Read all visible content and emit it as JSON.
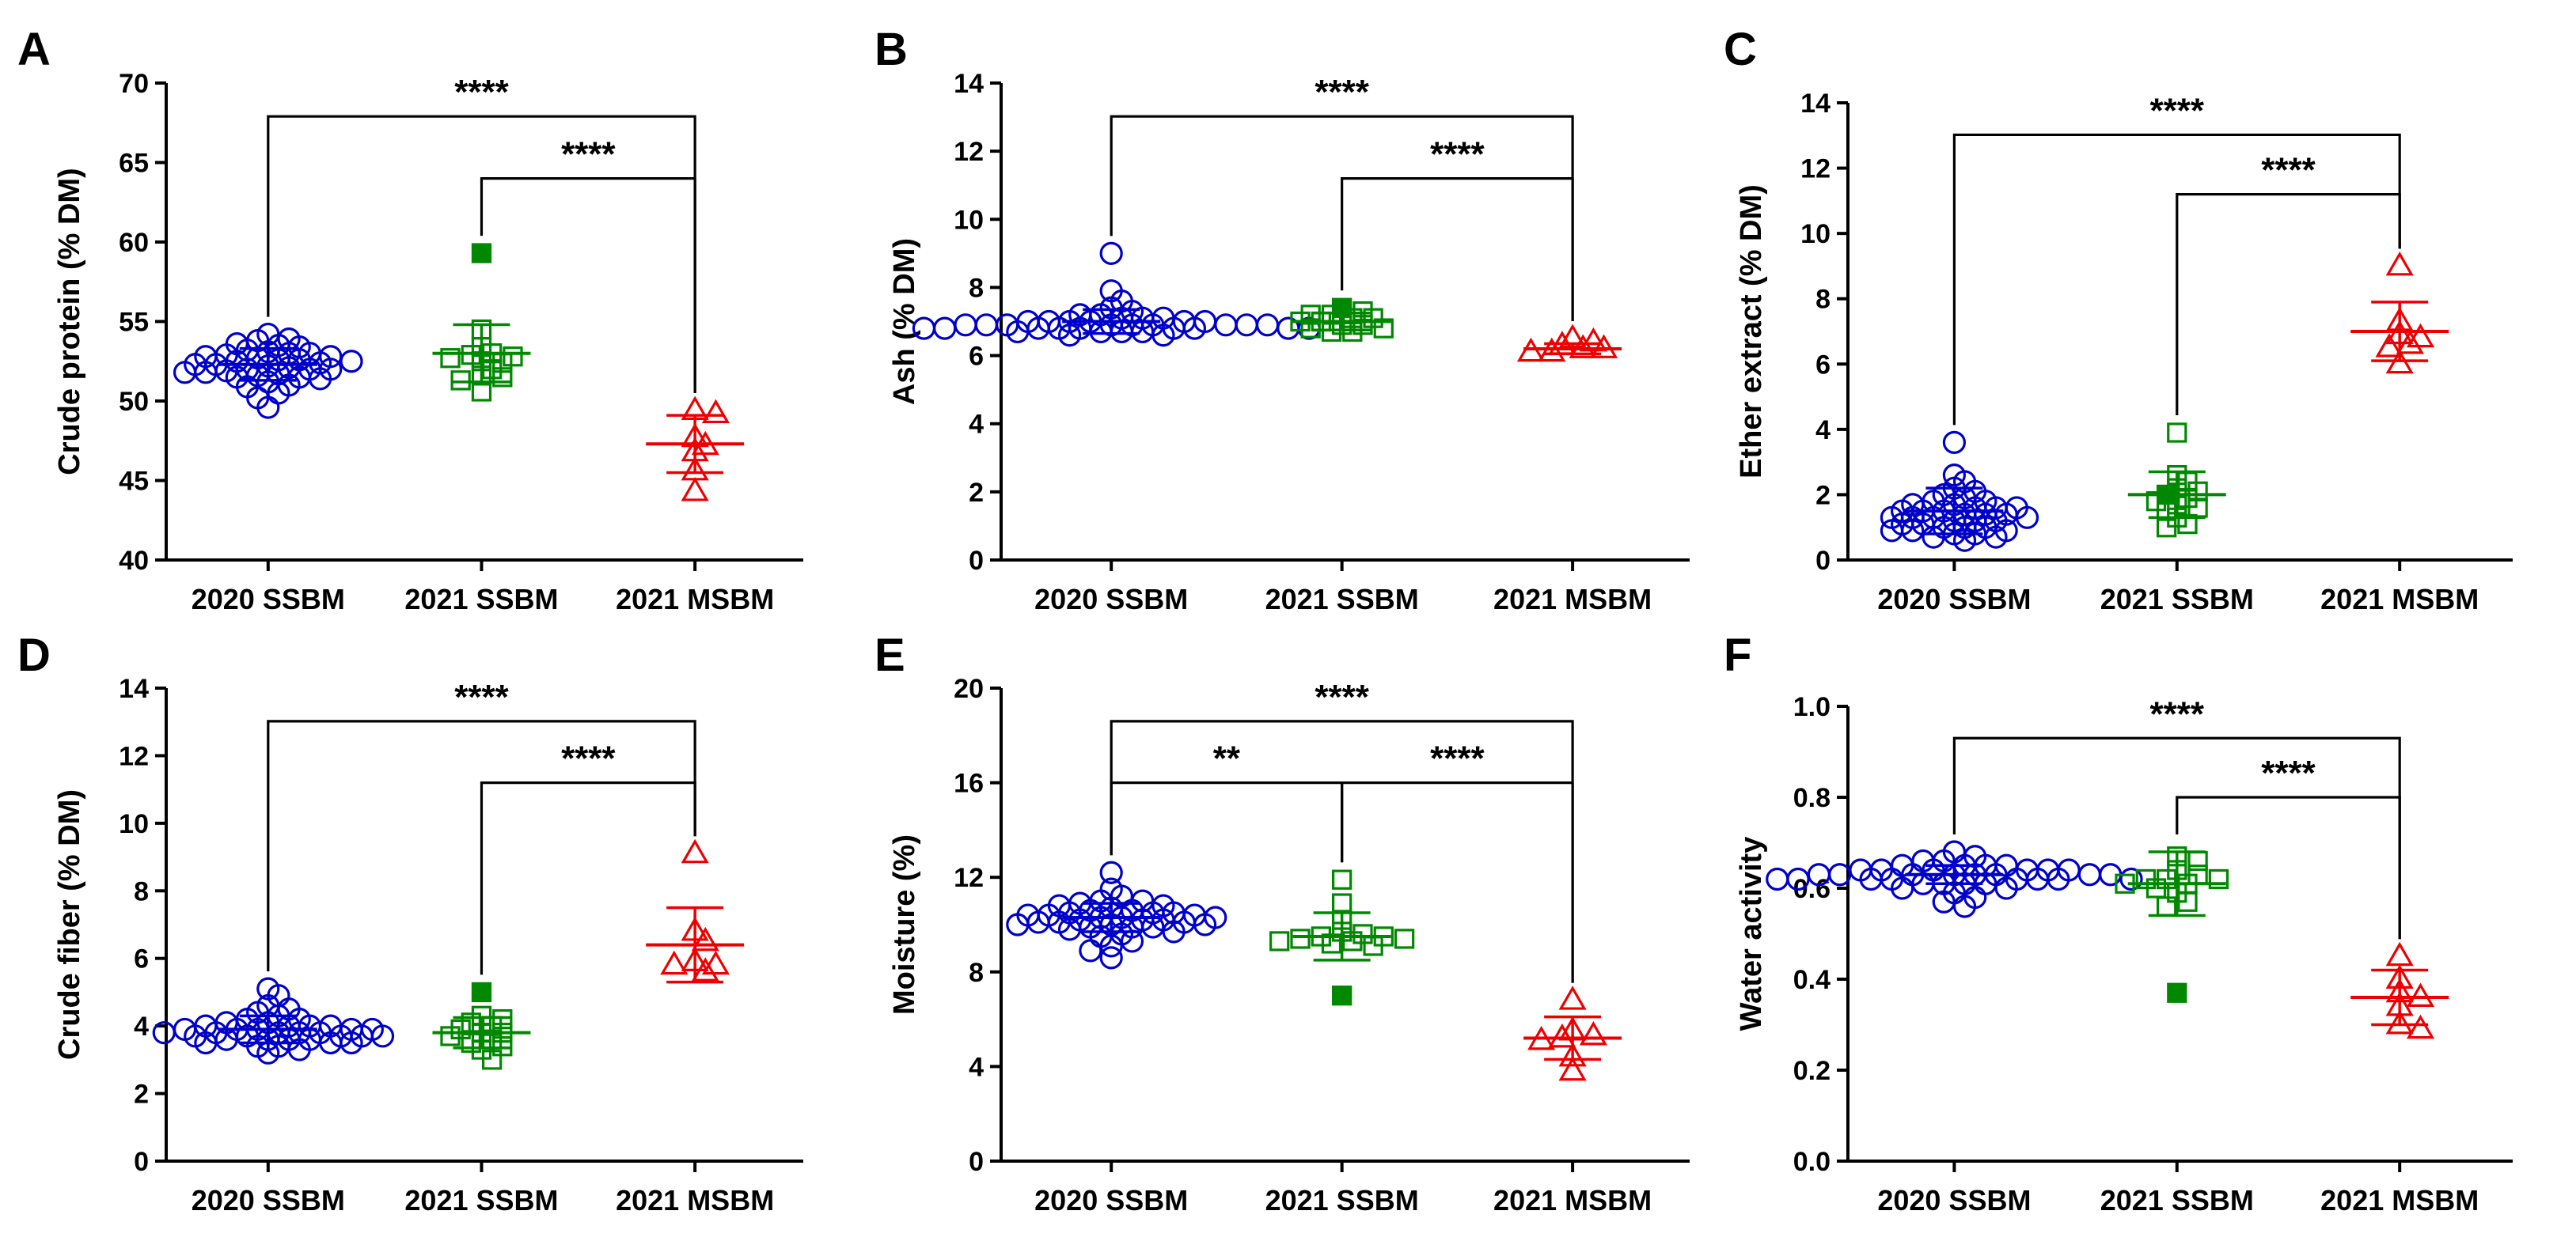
{
  "chart_data": [
    {
      "type": "scatter",
      "panel": "A",
      "ylabel": "Crude protein (% DM)",
      "ylim": [
        40,
        70
      ],
      "yticks": [
        "40",
        "45",
        "50",
        "55",
        "60",
        "65",
        "70"
      ],
      "categories": [
        "2020 SSBM",
        "2021 SSBM",
        "2021 MSBM"
      ],
      "series": [
        {
          "marker": "circle",
          "color": "#0000cc",
          "mean": 52.3,
          "sd": 1.0,
          "values": [
            52.0,
            52.5,
            53.0,
            51.5,
            53.5,
            52.2,
            51.8,
            52.8,
            50.5,
            49.6,
            54.2,
            53.8,
            51.0,
            52.4,
            52.9,
            51.7,
            53.2,
            52.0,
            52.6,
            51.4,
            53.6,
            52.1,
            51.9,
            52.7,
            50.9,
            53.1,
            52.3,
            51.6,
            52.5,
            53.0,
            51.2,
            52.8,
            53.4,
            52.0,
            51.8,
            52.6,
            50.2,
            52.3,
            53.9,
            51.5
          ]
        },
        {
          "marker": "square",
          "color": "#008800",
          "mean": 53.0,
          "sd": 1.8,
          "values": [
            59.3,
            54.5,
            53.4,
            53.0,
            52.9,
            52.8,
            52.7,
            52.5,
            52.4,
            52.0,
            51.6,
            51.5,
            51.3,
            50.6
          ],
          "filled_index": 0
        },
        {
          "marker": "triangle",
          "color": "#ee0000",
          "mean": 47.3,
          "sd": 1.8,
          "values": [
            49.4,
            49.2,
            47.7,
            47.2,
            46.8,
            45.6,
            44.3
          ]
        }
      ],
      "comparisons": [
        {
          "from": "2020 SSBM",
          "to": "2021 MSBM",
          "label": "****"
        },
        {
          "from": "2021 SSBM",
          "to": "2021 MSBM",
          "label": "****"
        }
      ]
    },
    {
      "type": "scatter",
      "panel": "B",
      "ylabel": "Ash (% DM)",
      "ylim": [
        0,
        14
      ],
      "yticks": [
        "0",
        "2",
        "4",
        "6",
        "8",
        "10",
        "12",
        "14"
      ],
      "categories": [
        "2020 SSBM",
        "2021 SSBM",
        "2021 MSBM"
      ],
      "series": [
        {
          "marker": "circle",
          "color": "#0000cc",
          "mean": 7.0,
          "sd": 0.35,
          "values": [
            9.0,
            7.9,
            7.6,
            7.4,
            7.3,
            7.2,
            7.1,
            7.1,
            7.0,
            7.0,
            7.0,
            6.9,
            6.9,
            6.9,
            6.9,
            6.8,
            6.8,
            6.8,
            6.8,
            6.8,
            6.7,
            6.7,
            6.7,
            6.9,
            7.0,
            7.1,
            6.8,
            6.9,
            7.0,
            6.6,
            6.8,
            6.9,
            7.0,
            6.8,
            6.9,
            6.7,
            7.2,
            6.9,
            6.8,
            6.6
          ]
        },
        {
          "marker": "square",
          "color": "#008800",
          "mean": 7.0,
          "sd": 0.25,
          "values": [
            7.4,
            7.3,
            7.2,
            7.2,
            7.1,
            7.1,
            7.0,
            7.0,
            6.9,
            6.9,
            6.8,
            6.8,
            6.7,
            6.7
          ],
          "filled_index": 0
        },
        {
          "marker": "triangle",
          "color": "#ee0000",
          "mean": 6.2,
          "sd": 0.15,
          "values": [
            6.5,
            6.4,
            6.3,
            6.2,
            6.2,
            6.1,
            6.1
          ]
        }
      ],
      "comparisons": [
        {
          "from": "2020 SSBM",
          "to": "2021 MSBM",
          "label": "****"
        },
        {
          "from": "2021 SSBM",
          "to": "2021 MSBM",
          "label": "****"
        }
      ]
    },
    {
      "type": "scatter",
      "panel": "C",
      "ylabel": "Ether extract (% DM)",
      "ylim": [
        0,
        14
      ],
      "yticks": [
        "0",
        "2",
        "4",
        "6",
        "8",
        "10",
        "12",
        "14"
      ],
      "categories": [
        "2020 SSBM",
        "2021 SSBM",
        "2021 MSBM"
      ],
      "series": [
        {
          "marker": "circle",
          "color": "#0000cc",
          "mean": 1.5,
          "sd": 0.7,
          "values": [
            3.6,
            2.6,
            2.4,
            2.2,
            2.0,
            1.9,
            1.8,
            1.7,
            1.6,
            1.6,
            1.5,
            1.5,
            1.4,
            1.4,
            1.3,
            1.3,
            1.3,
            1.2,
            1.2,
            1.1,
            1.1,
            1.0,
            1.0,
            0.9,
            0.9,
            0.8,
            0.8,
            0.7,
            0.7,
            0.6,
            1.6,
            1.4,
            1.2,
            1.0,
            1.8,
            1.5,
            1.3,
            2.1,
            0.9,
            1.7
          ]
        },
        {
          "marker": "square",
          "color": "#008800",
          "mean": 2.0,
          "sd": 0.7,
          "values": [
            3.9,
            2.6,
            2.4,
            2.2,
            2.1,
            2.0,
            1.9,
            1.8,
            1.7,
            1.6,
            1.5,
            1.3,
            1.1,
            1.0
          ],
          "filled_index": 5
        },
        {
          "marker": "triangle",
          "color": "#ee0000",
          "mean": 7.0,
          "sd": 0.9,
          "values": [
            9.0,
            7.3,
            6.9,
            6.8,
            6.6,
            6.5,
            6.0
          ]
        }
      ],
      "comparisons": [
        {
          "from": "2020 SSBM",
          "to": "2021 MSBM",
          "label": "****"
        },
        {
          "from": "2021 SSBM",
          "to": "2021 MSBM",
          "label": "****"
        }
      ]
    },
    {
      "type": "scatter",
      "panel": "D",
      "ylabel": "Crude fiber (% DM)",
      "ylim": [
        0,
        14
      ],
      "yticks": [
        "0",
        "2",
        "4",
        "6",
        "8",
        "10",
        "12",
        "14"
      ],
      "categories": [
        "2020 SSBM",
        "2021 SSBM",
        "2021 MSBM"
      ],
      "series": [
        {
          "marker": "circle",
          "color": "#0000cc",
          "mean": 3.9,
          "sd": 0.4,
          "values": [
            5.1,
            4.9,
            4.6,
            4.4,
            4.3,
            4.2,
            4.1,
            4.0,
            4.0,
            3.9,
            3.9,
            3.8,
            3.8,
            3.8,
            3.7,
            3.7,
            3.7,
            3.6,
            3.6,
            3.5,
            3.5,
            3.4,
            3.4,
            3.3,
            3.2,
            4.1,
            4.0,
            3.9,
            3.8,
            3.7,
            3.6,
            4.2,
            3.9,
            3.7,
            4.5,
            3.5,
            3.8,
            4.0,
            3.6,
            3.9
          ]
        },
        {
          "marker": "square",
          "color": "#008800",
          "mean": 3.8,
          "sd": 0.45,
          "values": [
            5.0,
            4.3,
            4.2,
            4.1,
            4.0,
            3.9,
            3.8,
            3.8,
            3.7,
            3.6,
            3.5,
            3.4,
            3.3,
            3.0
          ],
          "filled_index": 0
        },
        {
          "marker": "triangle",
          "color": "#ee0000",
          "mean": 6.4,
          "sd": 1.1,
          "values": [
            9.1,
            6.8,
            6.5,
            5.9,
            5.8,
            5.8,
            5.6
          ]
        }
      ],
      "comparisons": [
        {
          "from": "2020 SSBM",
          "to": "2021 MSBM",
          "label": "****"
        },
        {
          "from": "2021 SSBM",
          "to": "2021 MSBM",
          "label": "****"
        }
      ]
    },
    {
      "type": "scatter",
      "panel": "E",
      "ylabel": "Moisture (%)",
      "ylim": [
        0,
        20
      ],
      "yticks": [
        "0",
        "4",
        "8",
        "12",
        "16",
        "20"
      ],
      "categories": [
        "2020 SSBM",
        "2021 SSBM",
        "2021 MSBM"
      ],
      "series": [
        {
          "marker": "circle",
          "color": "#0000cc",
          "mean": 10.3,
          "sd": 0.6,
          "values": [
            12.2,
            11.5,
            11.2,
            11.0,
            10.9,
            10.8,
            10.7,
            10.6,
            10.5,
            10.5,
            10.4,
            10.4,
            10.3,
            10.3,
            10.2,
            10.2,
            10.1,
            10.1,
            10.0,
            10.0,
            9.9,
            9.9,
            9.8,
            9.7,
            9.6,
            9.5,
            9.3,
            9.1,
            8.9,
            8.6,
            10.6,
            10.4,
            10.2,
            10.0,
            10.8,
            10.3,
            9.9,
            11.0,
            10.1,
            10.5
          ]
        },
        {
          "marker": "square",
          "color": "#008800",
          "mean": 9.5,
          "sd": 1.0,
          "values": [
            11.9,
            10.9,
            10.2,
            9.7,
            9.6,
            9.5,
            9.5,
            9.4,
            9.4,
            9.3,
            9.3,
            9.2,
            9.1,
            7.0
          ],
          "filled_index": 13
        },
        {
          "marker": "triangle",
          "color": "#ee0000",
          "mean": 5.2,
          "sd": 0.9,
          "values": [
            6.8,
            5.5,
            5.3,
            5.2,
            5.1,
            4.4,
            3.8
          ]
        }
      ],
      "comparisons": [
        {
          "from": "2020 SSBM",
          "to": "2021 MSBM",
          "label": "****"
        },
        {
          "from": "2020 SSBM",
          "to": "2021 SSBM",
          "label": "**"
        },
        {
          "from": "2021 SSBM",
          "to": "2021 MSBM",
          "label": "****"
        }
      ]
    },
    {
      "type": "scatter",
      "panel": "F",
      "ylabel": "Water activity",
      "ylim": [
        0.0,
        1.0
      ],
      "yticks": [
        "0.0",
        "0.2",
        "0.4",
        "0.6",
        "0.8",
        "1.0"
      ],
      "categories": [
        "2020 SSBM",
        "2021 SSBM",
        "2021 MSBM"
      ],
      "series": [
        {
          "marker": "circle",
          "color": "#0000cc",
          "mean": 0.63,
          "sd": 0.02,
          "values": [
            0.68,
            0.67,
            0.66,
            0.66,
            0.65,
            0.65,
            0.65,
            0.64,
            0.64,
            0.64,
            0.64,
            0.63,
            0.63,
            0.63,
            0.63,
            0.63,
            0.62,
            0.62,
            0.62,
            0.62,
            0.62,
            0.61,
            0.61,
            0.61,
            0.6,
            0.6,
            0.59,
            0.58,
            0.57,
            0.56,
            0.64,
            0.63,
            0.62,
            0.63,
            0.65,
            0.62,
            0.61,
            0.64,
            0.63,
            0.62
          ]
        },
        {
          "marker": "square",
          "color": "#008800",
          "mean": 0.61,
          "sd": 0.07,
          "values": [
            0.67,
            0.66,
            0.64,
            0.63,
            0.62,
            0.62,
            0.62,
            0.61,
            0.61,
            0.6,
            0.59,
            0.57,
            0.56,
            0.37
          ],
          "filled_index": 13
        },
        {
          "marker": "triangle",
          "color": "#ee0000",
          "mean": 0.36,
          "sd": 0.06,
          "values": [
            0.45,
            0.4,
            0.37,
            0.36,
            0.34,
            0.3,
            0.29
          ]
        }
      ],
      "comparisons": [
        {
          "from": "2020 SSBM",
          "to": "2021 MSBM",
          "label": "****"
        },
        {
          "from": "2021 SSBM",
          "to": "2021 MSBM",
          "label": "****"
        }
      ]
    }
  ]
}
